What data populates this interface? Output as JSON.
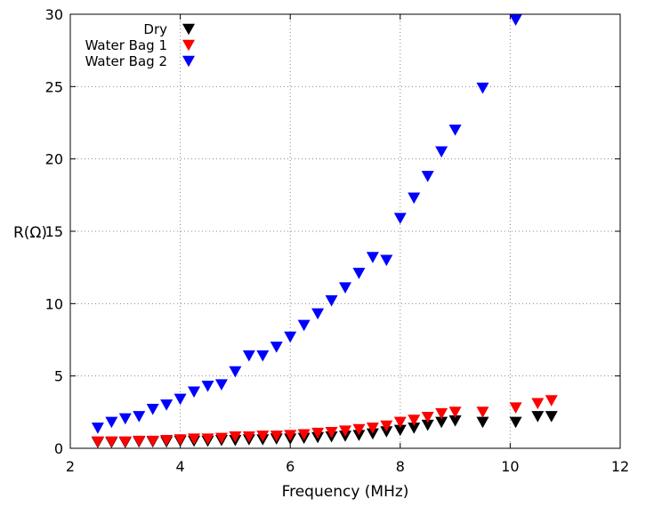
{
  "chart_data": {
    "type": "scatter",
    "title": "",
    "xlabel": "Frequency (MHz)",
    "ylabel": "R(Ω)",
    "xlim": [
      2,
      12
    ],
    "ylim": [
      0,
      30
    ],
    "xticks": [
      2,
      4,
      6,
      8,
      10,
      12
    ],
    "yticks": [
      0,
      5,
      10,
      15,
      20,
      25,
      30
    ],
    "grid": true,
    "legend_position": "top-left",
    "marker": "triangle-down",
    "series": [
      {
        "name": "Dry",
        "color": "#000000",
        "x": [
          2.5,
          2.75,
          3,
          3.25,
          3.5,
          3.75,
          4,
          4.25,
          4.5,
          4.75,
          5,
          5.25,
          5.5,
          5.75,
          6,
          6.25,
          6.5,
          6.75,
          7,
          7.25,
          7.5,
          7.75,
          8,
          8.25,
          8.5,
          8.75,
          9,
          9.5,
          10.1,
          10.5,
          10.75
        ],
        "y": [
          0.2,
          0.2,
          0.2,
          0.25,
          0.25,
          0.25,
          0.3,
          0.3,
          0.3,
          0.35,
          0.35,
          0.4,
          0.4,
          0.45,
          0.45,
          0.5,
          0.55,
          0.6,
          0.65,
          0.7,
          0.8,
          0.95,
          1.05,
          1.2,
          1.4,
          1.6,
          1.7,
          1.6,
          1.6,
          2.0,
          2.0
        ]
      },
      {
        "name": "Water Bag 1",
        "color": "#ff0000",
        "x": [
          2.5,
          2.75,
          3,
          3.25,
          3.5,
          3.75,
          4,
          4.25,
          4.5,
          4.75,
          5,
          5.25,
          5.5,
          5.75,
          6,
          6.25,
          6.5,
          6.75,
          7,
          7.25,
          7.5,
          7.75,
          8,
          8.25,
          8.5,
          8.75,
          9,
          9.5,
          10.1,
          10.5,
          10.75
        ],
        "y": [
          0.25,
          0.25,
          0.25,
          0.3,
          0.3,
          0.35,
          0.4,
          0.45,
          0.45,
          0.5,
          0.6,
          0.6,
          0.65,
          0.65,
          0.7,
          0.75,
          0.85,
          0.9,
          1.0,
          1.1,
          1.2,
          1.35,
          1.6,
          1.75,
          1.95,
          2.2,
          2.3,
          2.3,
          2.6,
          2.9,
          3.1
        ]
      },
      {
        "name": "Water Bag 2",
        "color": "#0000ff",
        "x": [
          2.5,
          2.75,
          3,
          3.25,
          3.5,
          3.75,
          4,
          4.25,
          4.5,
          4.75,
          5,
          5.25,
          5.5,
          5.75,
          6,
          6.25,
          6.5,
          6.75,
          7,
          7.25,
          7.5,
          7.75,
          8,
          8.25,
          8.5,
          8.75,
          9,
          9.5,
          10.1
        ],
        "y": [
          1.2,
          1.6,
          1.85,
          2.0,
          2.5,
          2.8,
          3.2,
          3.7,
          4.1,
          4.2,
          5.1,
          6.2,
          6.2,
          6.8,
          7.5,
          8.3,
          9.1,
          10.0,
          10.9,
          11.9,
          13.0,
          12.8,
          15.7,
          17.1,
          18.6,
          20.3,
          21.8,
          24.7,
          29.4
        ]
      }
    ]
  }
}
